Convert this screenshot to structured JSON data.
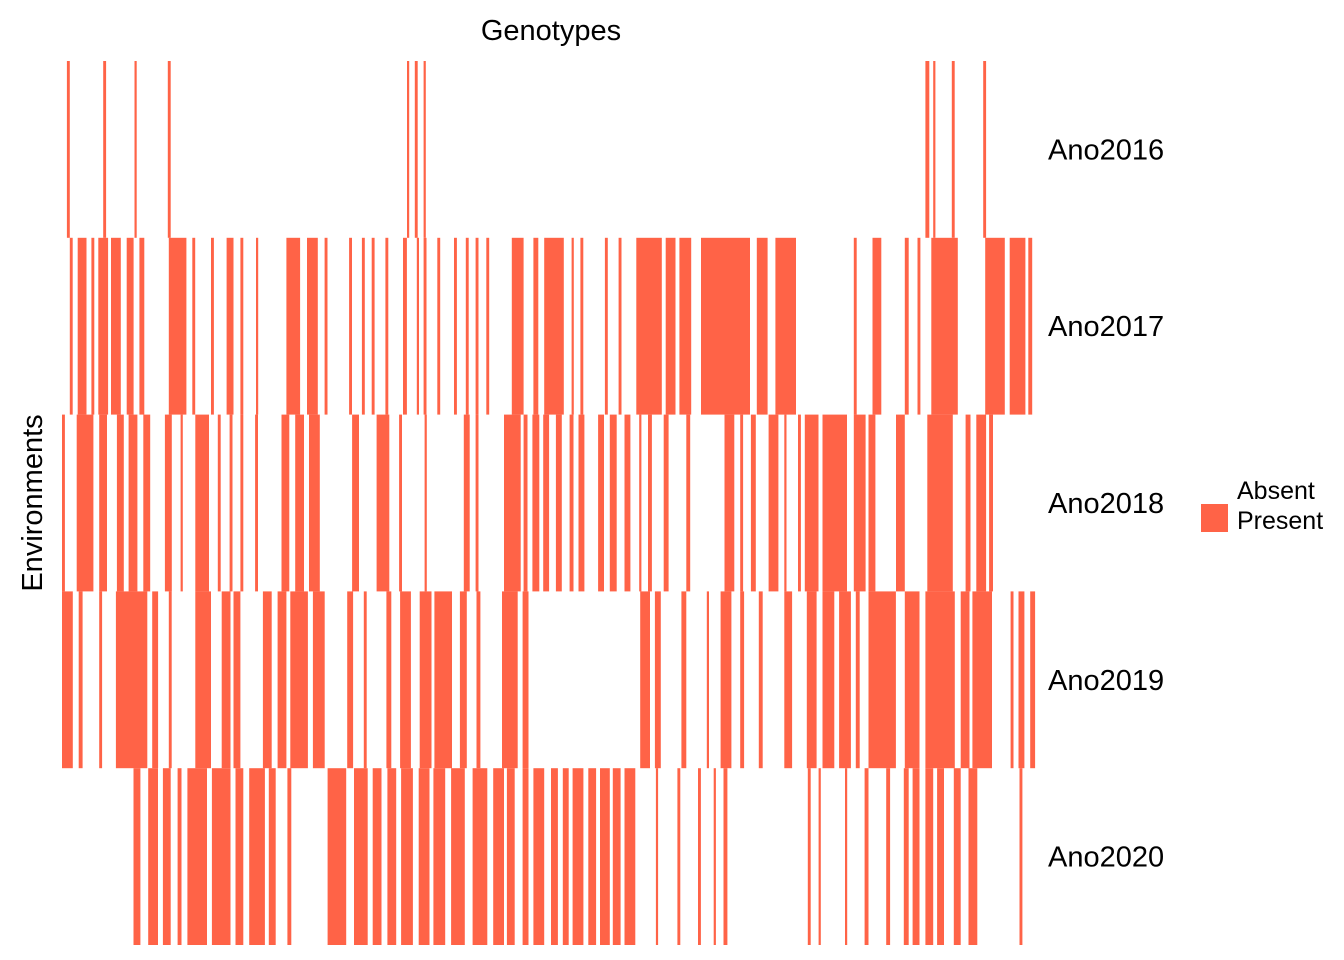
{
  "chart_data": {
    "type": "heatmap",
    "title": "",
    "xlabel": "Genotypes",
    "ylabel": "Environments",
    "rows": [
      "Ano2016",
      "Ano2017",
      "Ano2018",
      "Ano2019",
      "Ano2020"
    ],
    "legend": {
      "placement": "right",
      "entries": [
        {
          "label": "Absent",
          "color": "#ffffff"
        },
        {
          "label": "Present",
          "color": "#ff6347"
        }
      ]
    },
    "x_range": [
      0,
      1
    ],
    "value_encoding": "present_intervals as [start, end] fractions of the genotype axis (left to right)",
    "present_intervals": {
      "Ano2016": [
        [
          0.005,
          0.008
        ],
        [
          0.042,
          0.045
        ],
        [
          0.074,
          0.076
        ],
        [
          0.108,
          0.111
        ],
        [
          0.352,
          0.354
        ],
        [
          0.36,
          0.363
        ],
        [
          0.369,
          0.371
        ],
        [
          0.881,
          0.885
        ],
        [
          0.889,
          0.891
        ],
        [
          0.908,
          0.911
        ],
        [
          0.94,
          0.943
        ]
      ],
      "Ano2017": [
        [
          0.008,
          0.011
        ],
        [
          0.016,
          0.025
        ],
        [
          0.03,
          0.033
        ],
        [
          0.037,
          0.047
        ],
        [
          0.05,
          0.06
        ],
        [
          0.066,
          0.073
        ],
        [
          0.079,
          0.084
        ],
        [
          0.109,
          0.127
        ],
        [
          0.133,
          0.136
        ],
        [
          0.152,
          0.155
        ],
        [
          0.168,
          0.175
        ],
        [
          0.182,
          0.185
        ],
        [
          0.198,
          0.2
        ],
        [
          0.229,
          0.243
        ],
        [
          0.25,
          0.261
        ],
        [
          0.268,
          0.271
        ],
        [
          0.293,
          0.296
        ],
        [
          0.306,
          0.309
        ],
        [
          0.316,
          0.319
        ],
        [
          0.33,
          0.333
        ],
        [
          0.348,
          0.352
        ],
        [
          0.362,
          0.364
        ],
        [
          0.369,
          0.372
        ],
        [
          0.383,
          0.386
        ],
        [
          0.4,
          0.403
        ],
        [
          0.412,
          0.415
        ],
        [
          0.422,
          0.425
        ],
        [
          0.433,
          0.436
        ],
        [
          0.459,
          0.471
        ],
        [
          0.481,
          0.486
        ],
        [
          0.492,
          0.512
        ],
        [
          0.52,
          0.522
        ],
        [
          0.529,
          0.532
        ],
        [
          0.554,
          0.557
        ],
        [
          0.568,
          0.571
        ],
        [
          0.586,
          0.612
        ],
        [
          0.616,
          0.626
        ],
        [
          0.63,
          0.642
        ],
        [
          0.652,
          0.702
        ],
        [
          0.709,
          0.72
        ],
        [
          0.728,
          0.749
        ],
        [
          0.808,
          0.811
        ],
        [
          0.827,
          0.836
        ],
        [
          0.86,
          0.864
        ],
        [
          0.873,
          0.876
        ],
        [
          0.887,
          0.914
        ],
        [
          0.942,
          0.962
        ],
        [
          0.967,
          0.983
        ],
        [
          0.986,
          0.99
        ]
      ],
      "Ano2018": [
        [
          0.0,
          0.003
        ],
        [
          0.015,
          0.032
        ],
        [
          0.038,
          0.046
        ],
        [
          0.056,
          0.063
        ],
        [
          0.068,
          0.077
        ],
        [
          0.083,
          0.09
        ],
        [
          0.105,
          0.112
        ],
        [
          0.121,
          0.123
        ],
        [
          0.136,
          0.15
        ],
        [
          0.159,
          0.162
        ],
        [
          0.171,
          0.174
        ],
        [
          0.182,
          0.185
        ],
        [
          0.197,
          0.2
        ],
        [
          0.224,
          0.232
        ],
        [
          0.238,
          0.247
        ],
        [
          0.252,
          0.263
        ],
        [
          0.296,
          0.303
        ],
        [
          0.321,
          0.334
        ],
        [
          0.344,
          0.347
        ],
        [
          0.37,
          0.372
        ],
        [
          0.41,
          0.416
        ],
        [
          0.422,
          0.425
        ],
        [
          0.451,
          0.468
        ],
        [
          0.471,
          0.475
        ],
        [
          0.48,
          0.487
        ],
        [
          0.491,
          0.497
        ],
        [
          0.504,
          0.51
        ],
        [
          0.518,
          0.522
        ],
        [
          0.527,
          0.533
        ],
        [
          0.547,
          0.553
        ],
        [
          0.559,
          0.566
        ],
        [
          0.574,
          0.58
        ],
        [
          0.589,
          0.59
        ],
        [
          0.598,
          0.602
        ],
        [
          0.614,
          0.619
        ],
        [
          0.637,
          0.641
        ],
        [
          0.676,
          0.686
        ],
        [
          0.692,
          0.695
        ],
        [
          0.703,
          0.708
        ],
        [
          0.721,
          0.731
        ],
        [
          0.737,
          0.739
        ],
        [
          0.751,
          0.754
        ],
        [
          0.758,
          0.772
        ],
        [
          0.776,
          0.801
        ],
        [
          0.808,
          0.82
        ],
        [
          0.823,
          0.83
        ],
        [
          0.851,
          0.86
        ],
        [
          0.883,
          0.909
        ],
        [
          0.922,
          0.927
        ],
        [
          0.933,
          0.943
        ],
        [
          0.946,
          0.95
        ]
      ],
      "Ano2019": [
        [
          0.0,
          0.011
        ],
        [
          0.017,
          0.021
        ],
        [
          0.038,
          0.041
        ],
        [
          0.055,
          0.087
        ],
        [
          0.092,
          0.098
        ],
        [
          0.109,
          0.112
        ],
        [
          0.136,
          0.152
        ],
        [
          0.163,
          0.172
        ],
        [
          0.175,
          0.182
        ],
        [
          0.205,
          0.214
        ],
        [
          0.22,
          0.229
        ],
        [
          0.233,
          0.251
        ],
        [
          0.256,
          0.268
        ],
        [
          0.291,
          0.297
        ],
        [
          0.308,
          0.311
        ],
        [
          0.331,
          0.336
        ],
        [
          0.345,
          0.356
        ],
        [
          0.365,
          0.377
        ],
        [
          0.38,
          0.398
        ],
        [
          0.406,
          0.413
        ],
        [
          0.423,
          0.427
        ],
        [
          0.449,
          0.465
        ],
        [
          0.47,
          0.476
        ],
        [
          0.59,
          0.6
        ],
        [
          0.605,
          0.611
        ],
        [
          0.632,
          0.637
        ],
        [
          0.658,
          0.66
        ],
        [
          0.672,
          0.683
        ],
        [
          0.692,
          0.696
        ],
        [
          0.711,
          0.715
        ],
        [
          0.737,
          0.745
        ],
        [
          0.76,
          0.77
        ],
        [
          0.776,
          0.788
        ],
        [
          0.793,
          0.805
        ],
        [
          0.81,
          0.814
        ],
        [
          0.823,
          0.851
        ],
        [
          0.86,
          0.875
        ],
        [
          0.881,
          0.911
        ],
        [
          0.917,
          0.926
        ],
        [
          0.929,
          0.949
        ],
        [
          0.968,
          0.971
        ],
        [
          0.976,
          0.982
        ],
        [
          0.988,
          0.993
        ]
      ],
      "Ano2020": [
        [
          0.073,
          0.08
        ],
        [
          0.088,
          0.098
        ],
        [
          0.103,
          0.111
        ],
        [
          0.118,
          0.122
        ],
        [
          0.128,
          0.148
        ],
        [
          0.153,
          0.172
        ],
        [
          0.177,
          0.185
        ],
        [
          0.191,
          0.207
        ],
        [
          0.211,
          0.218
        ],
        [
          0.23,
          0.234
        ],
        [
          0.271,
          0.29
        ],
        [
          0.298,
          0.312
        ],
        [
          0.317,
          0.326
        ],
        [
          0.332,
          0.341
        ],
        [
          0.346,
          0.358
        ],
        [
          0.364,
          0.375
        ],
        [
          0.379,
          0.391
        ],
        [
          0.397,
          0.411
        ],
        [
          0.419,
          0.434
        ],
        [
          0.44,
          0.451
        ],
        [
          0.454,
          0.462
        ],
        [
          0.47,
          0.476
        ],
        [
          0.481,
          0.492
        ],
        [
          0.499,
          0.506
        ],
        [
          0.511,
          0.517
        ],
        [
          0.521,
          0.532
        ],
        [
          0.537,
          0.545
        ],
        [
          0.549,
          0.559
        ],
        [
          0.562,
          0.57
        ],
        [
          0.574,
          0.585
        ],
        [
          0.606,
          0.608
        ],
        [
          0.628,
          0.631
        ],
        [
          0.649,
          0.652
        ],
        [
          0.665,
          0.667
        ],
        [
          0.675,
          0.679
        ],
        [
          0.761,
          0.764
        ],
        [
          0.772,
          0.774
        ],
        [
          0.799,
          0.801
        ],
        [
          0.819,
          0.823
        ],
        [
          0.841,
          0.845
        ],
        [
          0.859,
          0.864
        ],
        [
          0.868,
          0.875
        ],
        [
          0.881,
          0.889
        ],
        [
          0.893,
          0.9
        ],
        [
          0.91,
          0.917
        ],
        [
          0.925,
          0.934
        ],
        [
          0.977,
          0.98
        ]
      ]
    }
  }
}
